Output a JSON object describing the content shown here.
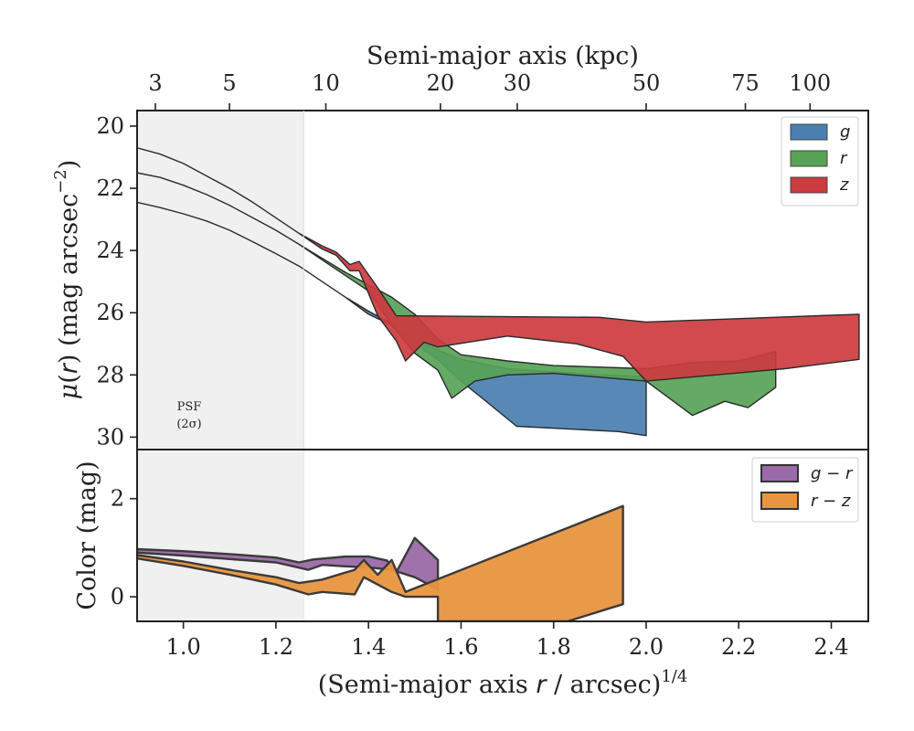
{
  "chart_data": [
    {
      "type": "area",
      "panel": "surface-brightness",
      "xlabel": {
        "pre": "(Semi-major axis ",
        "var": "r",
        "post": " / arcsec)",
        "sup": "1/4"
      },
      "ylabel": {
        "pre": "μ(",
        "var": "r",
        "post": ") (mag arcsec",
        "sup": "−2",
        "end": ")"
      },
      "top_axis_label": "Semi-major axis (kpc)",
      "top_ticks": [
        "3",
        "5",
        "10",
        "20",
        "30",
        "50",
        "75",
        "100"
      ],
      "top_tick_x": [
        0.9395,
        1.0996,
        1.3078,
        1.5554,
        1.7214,
        2.0,
        2.2144,
        2.3542
      ],
      "xlim": [
        0.9,
        2.48
      ],
      "ylim": [
        30.4,
        19.5
      ],
      "y_inverted": true,
      "yticks": [
        20,
        22,
        24,
        26,
        28,
        30
      ],
      "psf_shade_x": [
        0.9,
        1.26
      ],
      "psf_label": [
        "PSF",
        "(2σ)"
      ],
      "legend_position": "top-right",
      "series": [
        {
          "name": "g",
          "color": "#4a7fb0",
          "upper": [
            [
              0.9,
              22.45
            ],
            [
              0.95,
              22.62
            ],
            [
              1.0,
              22.82
            ],
            [
              1.05,
              23.05
            ],
            [
              1.1,
              23.35
            ],
            [
              1.15,
              23.72
            ],
            [
              1.2,
              24.1
            ],
            [
              1.25,
              24.5
            ],
            [
              1.3,
              25.0
            ],
            [
              1.35,
              25.5
            ],
            [
              1.4,
              25.95
            ],
            [
              1.45,
              26.35
            ],
            [
              1.5,
              26.9
            ],
            [
              1.6,
              27.5
            ],
            [
              1.7,
              27.8
            ],
            [
              1.8,
              27.9
            ],
            [
              1.9,
              28.0
            ],
            [
              2.0,
              28.05
            ]
          ],
          "lower": [
            [
              0.9,
              22.45
            ],
            [
              0.95,
              22.62
            ],
            [
              1.0,
              22.82
            ],
            [
              1.05,
              23.05
            ],
            [
              1.1,
              23.35
            ],
            [
              1.15,
              23.72
            ],
            [
              1.2,
              24.1
            ],
            [
              1.25,
              24.5
            ],
            [
              1.3,
              25.0
            ],
            [
              1.35,
              25.5
            ],
            [
              1.4,
              26.05
            ],
            [
              1.45,
              26.4
            ],
            [
              1.5,
              27.0
            ],
            [
              1.55,
              27.5
            ],
            [
              1.6,
              28.2
            ],
            [
              1.65,
              28.8
            ],
            [
              1.72,
              29.65
            ],
            [
              1.94,
              29.82
            ],
            [
              2.0,
              29.95
            ]
          ]
        },
        {
          "name": "r",
          "color": "#57a257",
          "upper": [
            [
              0.9,
              21.5
            ],
            [
              0.95,
              21.65
            ],
            [
              1.0,
              21.9
            ],
            [
              1.05,
              22.2
            ],
            [
              1.1,
              22.55
            ],
            [
              1.15,
              22.95
            ],
            [
              1.2,
              23.35
            ],
            [
              1.25,
              23.8
            ],
            [
              1.3,
              24.25
            ],
            [
              1.35,
              24.7
            ],
            [
              1.4,
              25.1
            ],
            [
              1.45,
              25.5
            ],
            [
              1.5,
              26.05
            ],
            [
              1.55,
              26.85
            ],
            [
              1.6,
              27.35
            ],
            [
              1.7,
              27.55
            ],
            [
              1.8,
              27.7
            ],
            [
              2.0,
              27.8
            ],
            [
              2.1,
              27.6
            ],
            [
              2.2,
              27.55
            ],
            [
              2.28,
              27.25
            ]
          ],
          "lower": [
            [
              0.9,
              21.5
            ],
            [
              0.95,
              21.65
            ],
            [
              1.0,
              21.9
            ],
            [
              1.05,
              22.2
            ],
            [
              1.1,
              22.55
            ],
            [
              1.15,
              22.95
            ],
            [
              1.2,
              23.35
            ],
            [
              1.25,
              23.8
            ],
            [
              1.3,
              24.3
            ],
            [
              1.35,
              24.8
            ],
            [
              1.4,
              25.3
            ],
            [
              1.45,
              26.4
            ],
            [
              1.5,
              27.3
            ],
            [
              1.55,
              27.85
            ],
            [
              1.58,
              28.75
            ],
            [
              1.63,
              28.2
            ],
            [
              1.7,
              28.0
            ],
            [
              1.8,
              27.95
            ],
            [
              2.0,
              28.2
            ],
            [
              2.1,
              29.3
            ],
            [
              2.17,
              28.85
            ],
            [
              2.22,
              29.05
            ],
            [
              2.28,
              28.4
            ]
          ]
        },
        {
          "name": "z",
          "color": "#cc3b3f",
          "upper": [
            [
              0.9,
              20.7
            ],
            [
              0.95,
              20.9
            ],
            [
              1.0,
              21.2
            ],
            [
              1.05,
              21.6
            ],
            [
              1.1,
              22.0
            ],
            [
              1.15,
              22.45
            ],
            [
              1.2,
              22.95
            ],
            [
              1.25,
              23.45
            ],
            [
              1.3,
              23.85
            ],
            [
              1.33,
              24.05
            ],
            [
              1.36,
              24.45
            ],
            [
              1.38,
              24.35
            ],
            [
              1.42,
              25.2
            ],
            [
              1.46,
              26.1
            ],
            [
              1.9,
              26.15
            ],
            [
              2.0,
              26.3
            ],
            [
              2.46,
              26.05
            ]
          ],
          "lower": [
            [
              0.9,
              20.7
            ],
            [
              0.95,
              20.9
            ],
            [
              1.0,
              21.2
            ],
            [
              1.05,
              21.6
            ],
            [
              1.1,
              22.0
            ],
            [
              1.15,
              22.45
            ],
            [
              1.2,
              22.95
            ],
            [
              1.25,
              23.45
            ],
            [
              1.3,
              23.95
            ],
            [
              1.33,
              24.15
            ],
            [
              1.36,
              24.65
            ],
            [
              1.38,
              24.65
            ],
            [
              1.42,
              26.1
            ],
            [
              1.46,
              26.9
            ],
            [
              1.48,
              27.55
            ],
            [
              1.52,
              26.95
            ],
            [
              1.55,
              27.1
            ],
            [
              1.7,
              26.75
            ],
            [
              1.85,
              27.0
            ],
            [
              1.95,
              27.4
            ],
            [
              2.0,
              28.2
            ],
            [
              2.15,
              28.0
            ],
            [
              2.3,
              27.8
            ],
            [
              2.46,
              27.5
            ]
          ]
        }
      ]
    },
    {
      "type": "area",
      "panel": "color",
      "xlabel": "(Semi-major axis r / arcsec)^1/4",
      "ylabel": "Color (mag)",
      "xlim": [
        0.9,
        2.48
      ],
      "ylim": [
        -0.5,
        3.0
      ],
      "yticks": [
        0,
        2
      ],
      "xticks": [
        1.0,
        1.2,
        1.4,
        1.6,
        1.8,
        2.0,
        2.2,
        2.4
      ],
      "xtick_labels": [
        "1.0",
        "1.2",
        "1.4",
        "1.6",
        "1.8",
        "2.0",
        "2.2",
        "2.4"
      ],
      "psf_shade_x": [
        0.9,
        1.26
      ],
      "legend_position": "top-right",
      "series": [
        {
          "name": "g − r",
          "color": "#9b6aa8",
          "polygon": [
            [
              0.9,
              0.97
            ],
            [
              1.0,
              0.93
            ],
            [
              1.1,
              0.87
            ],
            [
              1.2,
              0.8
            ],
            [
              1.25,
              0.7
            ],
            [
              1.28,
              0.76
            ],
            [
              1.35,
              0.82
            ],
            [
              1.4,
              0.82
            ],
            [
              1.44,
              0.74
            ],
            [
              1.46,
              0.5
            ],
            [
              1.5,
              1.2
            ],
            [
              1.55,
              0.75
            ],
            [
              1.55,
              0.15
            ],
            [
              1.52,
              0.3
            ],
            [
              1.5,
              0.4
            ],
            [
              1.45,
              0.55
            ],
            [
              1.4,
              0.6
            ],
            [
              1.35,
              0.62
            ],
            [
              1.3,
              0.65
            ],
            [
              1.27,
              0.55
            ],
            [
              1.2,
              0.7
            ],
            [
              1.1,
              0.77
            ],
            [
              1.0,
              0.84
            ],
            [
              0.9,
              0.9
            ]
          ]
        },
        {
          "name": "r − z",
          "color": "#e8953f",
          "polygon": [
            [
              0.9,
              0.85
            ],
            [
              1.0,
              0.72
            ],
            [
              1.1,
              0.55
            ],
            [
              1.2,
              0.4
            ],
            [
              1.25,
              0.28
            ],
            [
              1.3,
              0.35
            ],
            [
              1.37,
              0.55
            ],
            [
              1.39,
              0.75
            ],
            [
              1.42,
              0.45
            ],
            [
              1.45,
              0.75
            ],
            [
              1.48,
              0.1
            ],
            [
              1.95,
              1.85
            ],
            [
              1.95,
              -0.15
            ],
            [
              1.83,
              -0.5
            ],
            [
              1.55,
              -0.5
            ],
            [
              1.55,
              0.0
            ],
            [
              1.48,
              0.0
            ],
            [
              1.45,
              0.1
            ],
            [
              1.39,
              0.4
            ],
            [
              1.37,
              0.05
            ],
            [
              1.3,
              0.1
            ],
            [
              1.27,
              0.05
            ],
            [
              1.2,
              0.25
            ],
            [
              1.1,
              0.45
            ],
            [
              1.0,
              0.63
            ],
            [
              0.9,
              0.78
            ]
          ]
        }
      ]
    }
  ]
}
